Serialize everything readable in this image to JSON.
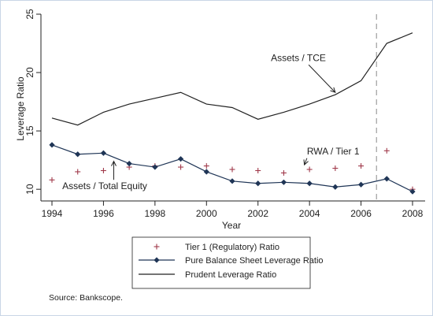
{
  "chart_data": {
    "type": "line",
    "xlabel": "Year",
    "ylabel": "Leverage Ratio",
    "xlim": [
      1994,
      2008
    ],
    "ylim": [
      9,
      25
    ],
    "x_ticks": [
      "1994",
      "1996",
      "1998",
      "2000",
      "2002",
      "2004",
      "2006",
      "2008"
    ],
    "y_ticks": [
      "10",
      "15",
      "20",
      "25"
    ],
    "grid": false,
    "vline_x": 2006.6,
    "series": [
      {
        "name": "Tier 1 (Regulatory) Ratio",
        "style": "markers-plus",
        "color": "#a0394a",
        "x": [
          1994,
          1995,
          1996,
          1997,
          1998,
          1999,
          2000,
          2001,
          2002,
          2003,
          2004,
          2005,
          2006,
          2007,
          2008
        ],
        "values": [
          10.8,
          11.5,
          11.6,
          11.9,
          12.0,
          11.9,
          12.0,
          11.7,
          11.6,
          11.4,
          11.7,
          11.8,
          12.0,
          13.3,
          10.0
        ]
      },
      {
        "name": "Pure Balance Sheet Leverage Ratio",
        "style": "line-diamonds",
        "color": "#1f3556",
        "x": [
          1994,
          1995,
          1996,
          1997,
          1998,
          1999,
          2000,
          2001,
          2002,
          2003,
          2004,
          2005,
          2006,
          2007,
          2008
        ],
        "values": [
          13.8,
          13.0,
          13.1,
          12.2,
          11.9,
          12.6,
          11.5,
          10.7,
          10.5,
          10.6,
          10.5,
          10.2,
          10.4,
          10.9,
          9.8
        ]
      },
      {
        "name": "Prudent Leverage Ratio",
        "style": "line",
        "color": "#222222",
        "x": [
          1994,
          1995,
          1996,
          1997,
          1998,
          1999,
          2000,
          2001,
          2002,
          2003,
          2004,
          2005,
          2006,
          2007,
          2008
        ],
        "values": [
          16.1,
          15.5,
          16.6,
          17.3,
          17.8,
          18.3,
          17.3,
          17.0,
          16.0,
          16.6,
          17.3,
          18.1,
          19.3,
          22.5,
          23.4
        ]
      }
    ],
    "annotations": [
      {
        "text": "Assets / TCE",
        "x": 2002.5,
        "y": 21.0,
        "arrow_to": [
          2005.0,
          18.3
        ]
      },
      {
        "text": "RWA / Tier 1",
        "x": 2003.9,
        "y": 13.0,
        "arrow_to": [
          2003.8,
          12.1
        ]
      },
      {
        "text": "Assets / Total Equity",
        "x": 1994.4,
        "y": 10.0,
        "arrow_to": [
          1996.4,
          12.4
        ]
      }
    ],
    "source": "Source: Bankscope."
  }
}
